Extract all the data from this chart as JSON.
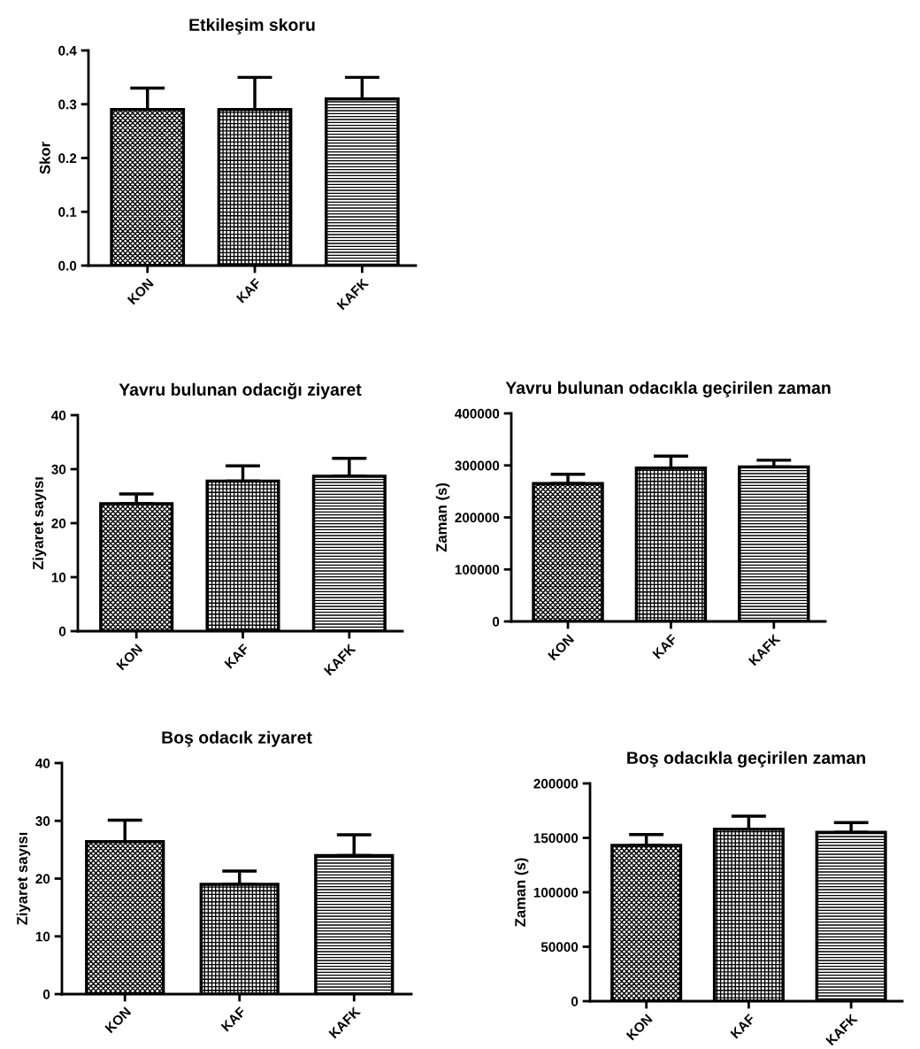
{
  "chart_data": [
    {
      "type": "bar",
      "title": "Etkileşim skoru",
      "ylabel": "Skor",
      "categories": [
        "KON",
        "KAF",
        "KAFK"
      ],
      "values": [
        0.29,
        0.29,
        0.31
      ],
      "errors": [
        [
          0.29,
          0.33
        ],
        [
          0.29,
          0.35
        ],
        [
          0.31,
          0.35
        ]
      ],
      "colors": [
        "#000000",
        "#000000",
        "#000000"
      ],
      "ylim": [
        0,
        0.4
      ],
      "yticks": [
        {
          "value": 0,
          "label": "0.0"
        },
        0.1,
        0.2,
        0.3,
        0.4
      ],
      "grid": false,
      "legend": false
    },
    {
      "type": "bar",
      "title": "Yavru bulunan odacığı ziyaret",
      "ylabel": "Ziyaret sayısı",
      "categories": [
        "KON",
        "KAF",
        "KAFK"
      ],
      "values": [
        23.6,
        27.8,
        28.7
      ],
      "errors": [
        [
          23.6,
          25.4
        ],
        [
          27.8,
          30.6
        ],
        [
          28.7,
          32.0
        ]
      ],
      "colors": [
        "#000000",
        "#000000",
        "#000000"
      ],
      "ylim": [
        0,
        40
      ],
      "yticks": [
        0,
        10,
        20,
        30,
        40
      ],
      "grid": false,
      "legend": false
    },
    {
      "type": "bar",
      "title": "Yavru bulunan odacıkla geçirilen zaman",
      "ylabel": "Zaman (s)",
      "categories": [
        "KON",
        "KAF",
        "KAFK"
      ],
      "values": [
        265000,
        295000,
        297000
      ],
      "errors": [
        [
          265000,
          283000
        ],
        [
          295000,
          318000
        ],
        [
          297000,
          310000
        ]
      ],
      "colors": [
        "#000000",
        "#000000",
        "#000000"
      ],
      "ylim": [
        0,
        400000
      ],
      "yticks": [
        0,
        100000,
        200000,
        300000,
        400000
      ],
      "grid": false,
      "legend": false
    },
    {
      "type": "bar",
      "title": "Boş odacık ziyaret",
      "ylabel": "Ziyaret sayısı",
      "categories": [
        "KON",
        "KAF",
        "KAFK"
      ],
      "values": [
        26.4,
        19.0,
        24.0
      ],
      "errors": [
        [
          26.4,
          30.1
        ],
        [
          19.0,
          21.3
        ],
        [
          24.0,
          27.6
        ]
      ],
      "colors": [
        "#000000",
        "#000000",
        "#000000"
      ],
      "ylim": [
        0,
        40
      ],
      "yticks": [
        0,
        10,
        20,
        30,
        40
      ],
      "grid": false,
      "legend": false
    },
    {
      "type": "bar",
      "title": "Boş odacıkla geçirilen zaman",
      "ylabel": "Zaman (s)",
      "categories": [
        "KON",
        "KAF",
        "KAFK"
      ],
      "values": [
        143000,
        158000,
        155000
      ],
      "errors": [
        [
          143000,
          153000
        ],
        [
          158000,
          170000
        ],
        [
          155000,
          164000
        ]
      ],
      "colors": [
        "#000000",
        "#000000",
        "#000000"
      ],
      "ylim": [
        0,
        200000
      ],
      "yticks": [
        0,
        50000,
        100000,
        150000,
        200000
      ],
      "grid": false,
      "legend": false
    }
  ]
}
